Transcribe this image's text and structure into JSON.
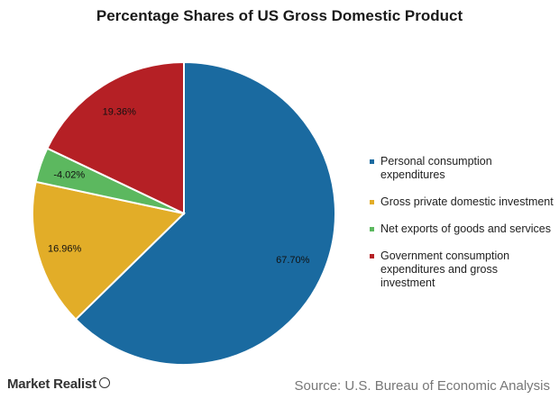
{
  "chart_data": {
    "type": "pie",
    "title": "Percentage Shares of US Gross Domestic Product",
    "slices": [
      {
        "name": "Personal consumption expenditures",
        "value": 67.7,
        "label": "67.70%",
        "color": "#1a6aa0"
      },
      {
        "name": "Gross private domestic investment",
        "value": 16.96,
        "label": "16.96%",
        "color": "#e2ad28"
      },
      {
        "name": "Net exports of goods and services",
        "value": 4.02,
        "label": "-4.02%",
        "color": "#5cb85f"
      },
      {
        "name": "Government consumption expenditures and gross investment",
        "value": 19.36,
        "label": "19.36%",
        "color": "#b52025"
      }
    ],
    "legend_position": "right"
  },
  "legend": [
    {
      "label": "Personal consumption expenditures",
      "color": "#1a6aa0"
    },
    {
      "label": "Gross private domestic investment",
      "color": "#e2ad28"
    },
    {
      "label": "Net exports of goods and services",
      "color": "#5cb85f"
    },
    {
      "label": "Government consumption expenditures and gross investment",
      "color": "#b52025"
    }
  ],
  "footer": {
    "brand": "Market Realist",
    "source": "Source: U.S. Bureau of Economic Analysis"
  }
}
